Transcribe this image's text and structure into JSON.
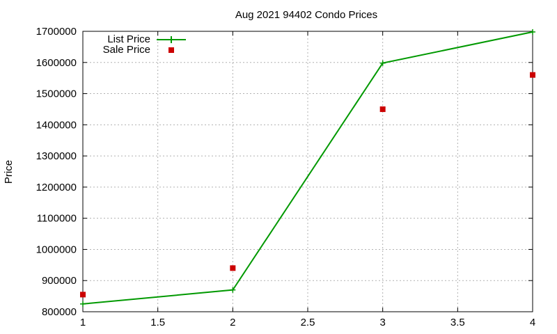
{
  "chart_data": {
    "type": "line",
    "title": "Aug 2021 94402 Condo Prices",
    "xlabel": "",
    "ylabel": "Price",
    "xlim": [
      1,
      4
    ],
    "ylim": [
      800000,
      1700000
    ],
    "xticks": [
      1,
      1.5,
      2,
      2.5,
      3,
      3.5,
      4
    ],
    "xtick_labels": [
      "1",
      "1.5",
      "2",
      "2.5",
      "3",
      "3.5",
      "4"
    ],
    "yticks": [
      800000,
      900000,
      1000000,
      1100000,
      1200000,
      1300000,
      1400000,
      1500000,
      1600000,
      1700000
    ],
    "ytick_labels": [
      "800000",
      "900000",
      "1000000",
      "1100000",
      "1200000",
      "1300000",
      "1400000",
      "1500000",
      "1600000",
      "1700000"
    ],
    "grid": true,
    "legend_position": "top-left",
    "series": [
      {
        "name": "List Price",
        "style": "line-with-plus-markers",
        "color": "#009900",
        "x": [
          1,
          2,
          3,
          4
        ],
        "y": [
          825000,
          870000,
          1598000,
          1698000
        ]
      },
      {
        "name": "Sale Price",
        "style": "square-markers",
        "color": "#cc0000",
        "x": [
          1,
          2,
          3,
          4
        ],
        "y": [
          855000,
          940000,
          1450000,
          1560000
        ]
      }
    ]
  }
}
